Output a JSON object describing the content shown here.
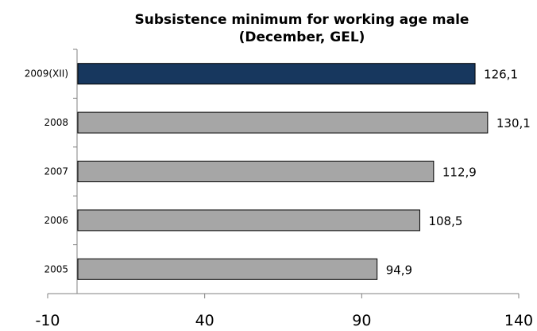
{
  "chart_data": {
    "type": "bar",
    "orientation": "horizontal",
    "title_lines": [
      "Subsistence minimum for working age male",
      "(December, GEL)"
    ],
    "categories": [
      "2009(XII)",
      "2008",
      "2007",
      "2006",
      "2005"
    ],
    "values": [
      126.1,
      130.1,
      112.9,
      108.5,
      94.9
    ],
    "value_labels": [
      "126,1",
      "130,1",
      "112,9",
      "108,5",
      "94,9"
    ],
    "xlim": [
      -10,
      140
    ],
    "xticks": [
      -10,
      40,
      90,
      140
    ],
    "xtick_labels": [
      "-10",
      "40",
      "90",
      "140"
    ],
    "grid": false,
    "legend": "none",
    "colors": {
      "highlight": "#17375e",
      "default": "#a6a6a6"
    },
    "highlight_index": 0
  }
}
